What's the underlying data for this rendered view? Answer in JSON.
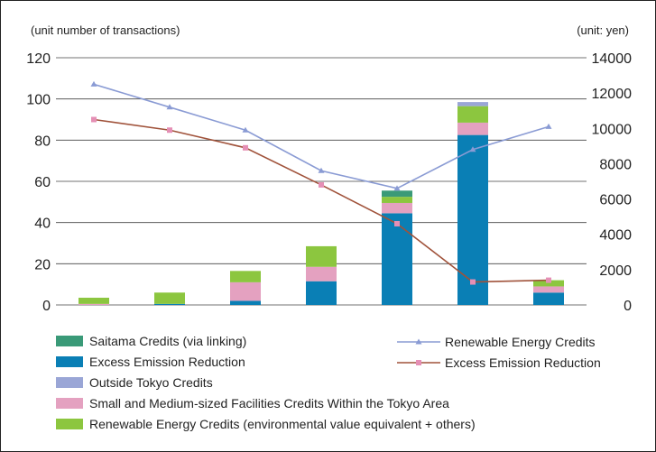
{
  "chart_data": {
    "type": "bar",
    "left_axis_label": "(unit number of transactions)",
    "right_axis_label": "(unit: yen)",
    "left_ylim": [
      0,
      120
    ],
    "left_ticks": [
      "0",
      "20",
      "40",
      "60",
      "80",
      "100",
      "120"
    ],
    "right_ylim": [
      0,
      14000
    ],
    "right_ticks": [
      "0",
      "2000",
      "4000",
      "6000",
      "8000",
      "10000",
      "12000",
      "14000"
    ],
    "categories": [
      "",
      "",
      "",
      "",
      "",
      "",
      ""
    ],
    "grid": true,
    "legend_position": "bottom",
    "bar_series": [
      {
        "name": "Saitama Credits (via linking)",
        "color": "#3a9a78",
        "values": [
          0,
          0,
          0,
          0,
          3,
          0,
          0
        ]
      },
      {
        "name": "Excess Emission Reduction",
        "color": "#0a7fb5",
        "values": [
          0,
          0.5,
          2,
          11.5,
          44.5,
          82.5,
          6
        ]
      },
      {
        "name": "Outside Tokyo Credits",
        "color": "#9aa6d6",
        "values": [
          0,
          0,
          0,
          0,
          0,
          2,
          0
        ]
      },
      {
        "name": "Small and Medium-sized Facilities Credits Within the Tokyo Area",
        "color": "#e4a1c0",
        "values": [
          0.5,
          0,
          9,
          7,
          5,
          6,
          3
        ]
      },
      {
        "name": "Renewable Energy Credits (environmental value equivalent + others)",
        "color": "#8cc63f",
        "values": [
          3,
          5.5,
          5.5,
          10,
          3,
          8,
          3
        ]
      }
    ],
    "line_series": [
      {
        "name": "Renewable Energy Credits",
        "color": "#8a9bd4",
        "marker": "triangle",
        "values": [
          12500,
          11200,
          9900,
          7600,
          6600,
          8800,
          10100
        ]
      },
      {
        "name": "Excess Emission Reduction",
        "color": "#a0523a",
        "marker": "square",
        "values": [
          10500,
          9900,
          8900,
          6800,
          4600,
          1300,
          1400
        ]
      }
    ]
  }
}
